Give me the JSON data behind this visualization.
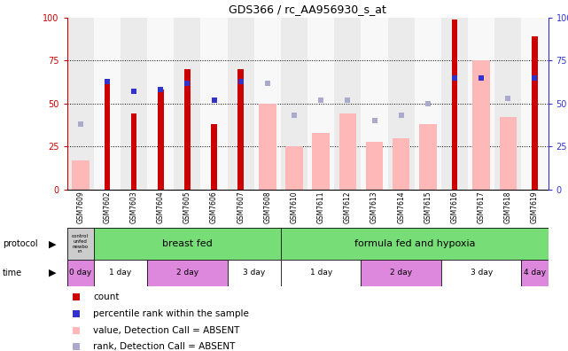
{
  "title": "GDS366 / rc_AA956930_s_at",
  "samples": [
    "GSM7609",
    "GSM7602",
    "GSM7603",
    "GSM7604",
    "GSM7605",
    "GSM7606",
    "GSM7607",
    "GSM7608",
    "GSM7610",
    "GSM7611",
    "GSM7612",
    "GSM7613",
    "GSM7614",
    "GSM7615",
    "GSM7616",
    "GSM7617",
    "GSM7618",
    "GSM7619"
  ],
  "red_bars": [
    0,
    62,
    44,
    58,
    70,
    38,
    70,
    0,
    0,
    0,
    0,
    0,
    0,
    0,
    99,
    0,
    0,
    89
  ],
  "blue_squares": [
    0,
    63,
    57,
    58,
    62,
    52,
    63,
    0,
    0,
    0,
    0,
    0,
    0,
    0,
    65,
    65,
    0,
    65
  ],
  "pink_bars": [
    17,
    0,
    0,
    0,
    0,
    0,
    0,
    50,
    25,
    33,
    44,
    28,
    30,
    38,
    0,
    75,
    42,
    0
  ],
  "lightblue_squares": [
    38,
    0,
    0,
    0,
    0,
    0,
    0,
    62,
    43,
    52,
    52,
    40,
    43,
    50,
    0,
    65,
    53,
    0
  ],
  "red_color": "#cc0000",
  "blue_color": "#3333cc",
  "pink_color": "#ffb8b8",
  "lightblue_color": "#aaaacc",
  "bg_color": "#ffffff",
  "ylim": [
    0,
    100
  ],
  "yticks": [
    0,
    25,
    50,
    75,
    100
  ],
  "right_ytick_labels": [
    "0",
    "25",
    "50",
    "75",
    "100%"
  ],
  "time_segments": [
    [
      0,
      1,
      "0 day",
      "#dd88dd"
    ],
    [
      1,
      3,
      "1 day",
      "#ffffff"
    ],
    [
      3,
      6,
      "2 day",
      "#dd88dd"
    ],
    [
      6,
      8,
      "3 day",
      "#ffffff"
    ],
    [
      8,
      11,
      "1 day",
      "#ffffff"
    ],
    [
      11,
      14,
      "2 day",
      "#dd88dd"
    ],
    [
      14,
      17,
      "3 day",
      "#ffffff"
    ],
    [
      17,
      18,
      "4 day",
      "#dd88dd"
    ]
  ],
  "green_color": "#77dd77",
  "protocol_gray": "#cccccc",
  "col_even_color": "#ebebeb",
  "col_odd_color": "#f8f8f8"
}
